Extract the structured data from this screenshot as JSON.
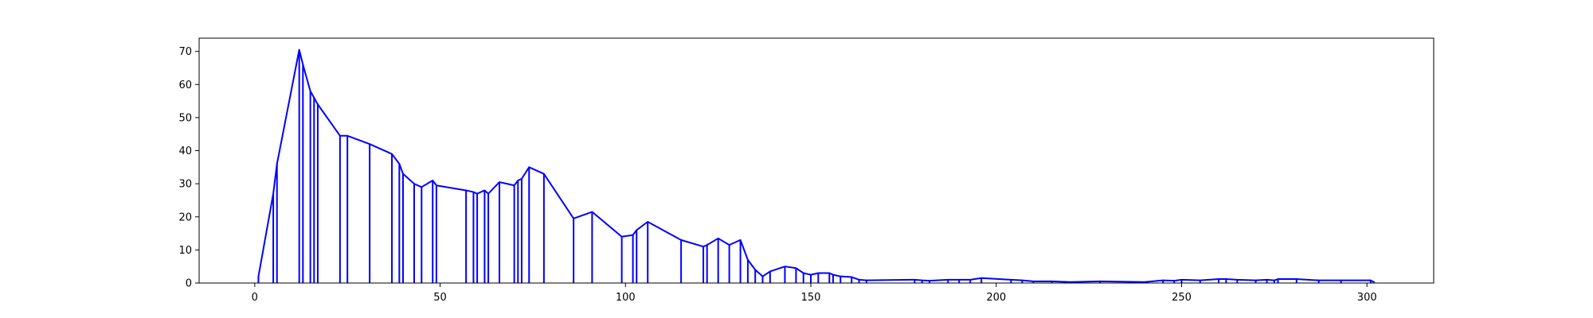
{
  "chart_data": {
    "type": "line",
    "title": "",
    "xlabel": "",
    "ylabel": "",
    "xlim": [
      -15,
      318
    ],
    "ylim": [
      0,
      74
    ],
    "grid": false,
    "legend": "none",
    "x_ticks": [
      0,
      50,
      100,
      150,
      200,
      250,
      300
    ],
    "y_ticks": [
      0,
      10,
      20,
      30,
      40,
      50,
      60,
      70
    ],
    "x_tick_labels": [
      "0",
      "50",
      "100",
      "150",
      "200",
      "250",
      "300"
    ],
    "y_tick_labels": [
      "0",
      "10",
      "20",
      "30",
      "40",
      "50",
      "60",
      "70"
    ],
    "series": [
      {
        "color": "#0000ff",
        "points": [
          [
            1,
            0.5
          ],
          [
            1,
            2
          ],
          [
            5,
            27
          ],
          [
            6,
            36
          ],
          [
            12,
            70.5
          ],
          [
            13,
            66
          ],
          [
            15,
            58
          ],
          [
            16,
            56
          ],
          [
            17,
            54
          ],
          [
            23,
            44.5
          ],
          [
            25,
            44.5
          ],
          [
            31,
            42
          ],
          [
            37,
            39
          ],
          [
            39,
            36
          ],
          [
            40,
            33
          ],
          [
            43,
            30
          ],
          [
            45,
            29
          ],
          [
            48,
            31
          ],
          [
            49,
            29.5
          ],
          [
            57,
            28
          ],
          [
            59,
            27.5
          ],
          [
            60,
            27
          ],
          [
            62,
            28
          ],
          [
            63,
            27
          ],
          [
            66,
            30.5
          ],
          [
            70,
            29.5
          ],
          [
            71,
            31
          ],
          [
            72,
            31.5
          ],
          [
            74,
            35
          ],
          [
            78,
            33
          ],
          [
            86,
            19.5
          ],
          [
            91,
            21.5
          ],
          [
            99,
            14
          ],
          [
            102,
            14.5
          ],
          [
            103,
            16
          ],
          [
            106,
            18.5
          ],
          [
            115,
            13
          ],
          [
            121,
            11
          ],
          [
            122,
            11.5
          ],
          [
            125,
            13.5
          ],
          [
            128,
            11.5
          ],
          [
            131,
            13
          ],
          [
            133,
            7
          ],
          [
            135,
            4
          ],
          [
            137,
            2
          ],
          [
            139,
            3.5
          ],
          [
            143,
            5
          ],
          [
            146,
            4.5
          ],
          [
            148,
            3
          ],
          [
            150,
            2.5
          ],
          [
            152,
            3
          ],
          [
            155,
            3
          ],
          [
            156,
            2.5
          ],
          [
            158,
            2
          ],
          [
            161,
            1.8
          ],
          [
            163,
            1
          ],
          [
            165,
            0.8
          ],
          [
            178,
            1
          ],
          [
            180,
            0.8
          ],
          [
            182,
            0.7
          ],
          [
            187,
            1
          ],
          [
            190,
            1
          ],
          [
            193,
            1
          ],
          [
            196,
            1.5
          ],
          [
            204,
            1
          ],
          [
            207,
            0.8
          ],
          [
            210,
            0.5
          ],
          [
            215,
            0.5
          ],
          [
            220,
            0.3
          ],
          [
            228,
            0.5
          ],
          [
            240,
            0.3
          ],
          [
            245,
            0.8
          ],
          [
            248,
            0.7
          ],
          [
            250,
            1
          ],
          [
            255,
            0.8
          ],
          [
            260,
            1.2
          ],
          [
            262,
            1.2
          ],
          [
            265,
            1
          ],
          [
            270,
            0.8
          ],
          [
            273,
            1
          ],
          [
            275,
            0.8
          ],
          [
            276,
            1.2
          ],
          [
            281,
            1.2
          ],
          [
            287,
            0.8
          ],
          [
            293,
            0.8
          ],
          [
            301,
            0.8
          ],
          [
            302,
            0.2
          ]
        ]
      }
    ]
  }
}
